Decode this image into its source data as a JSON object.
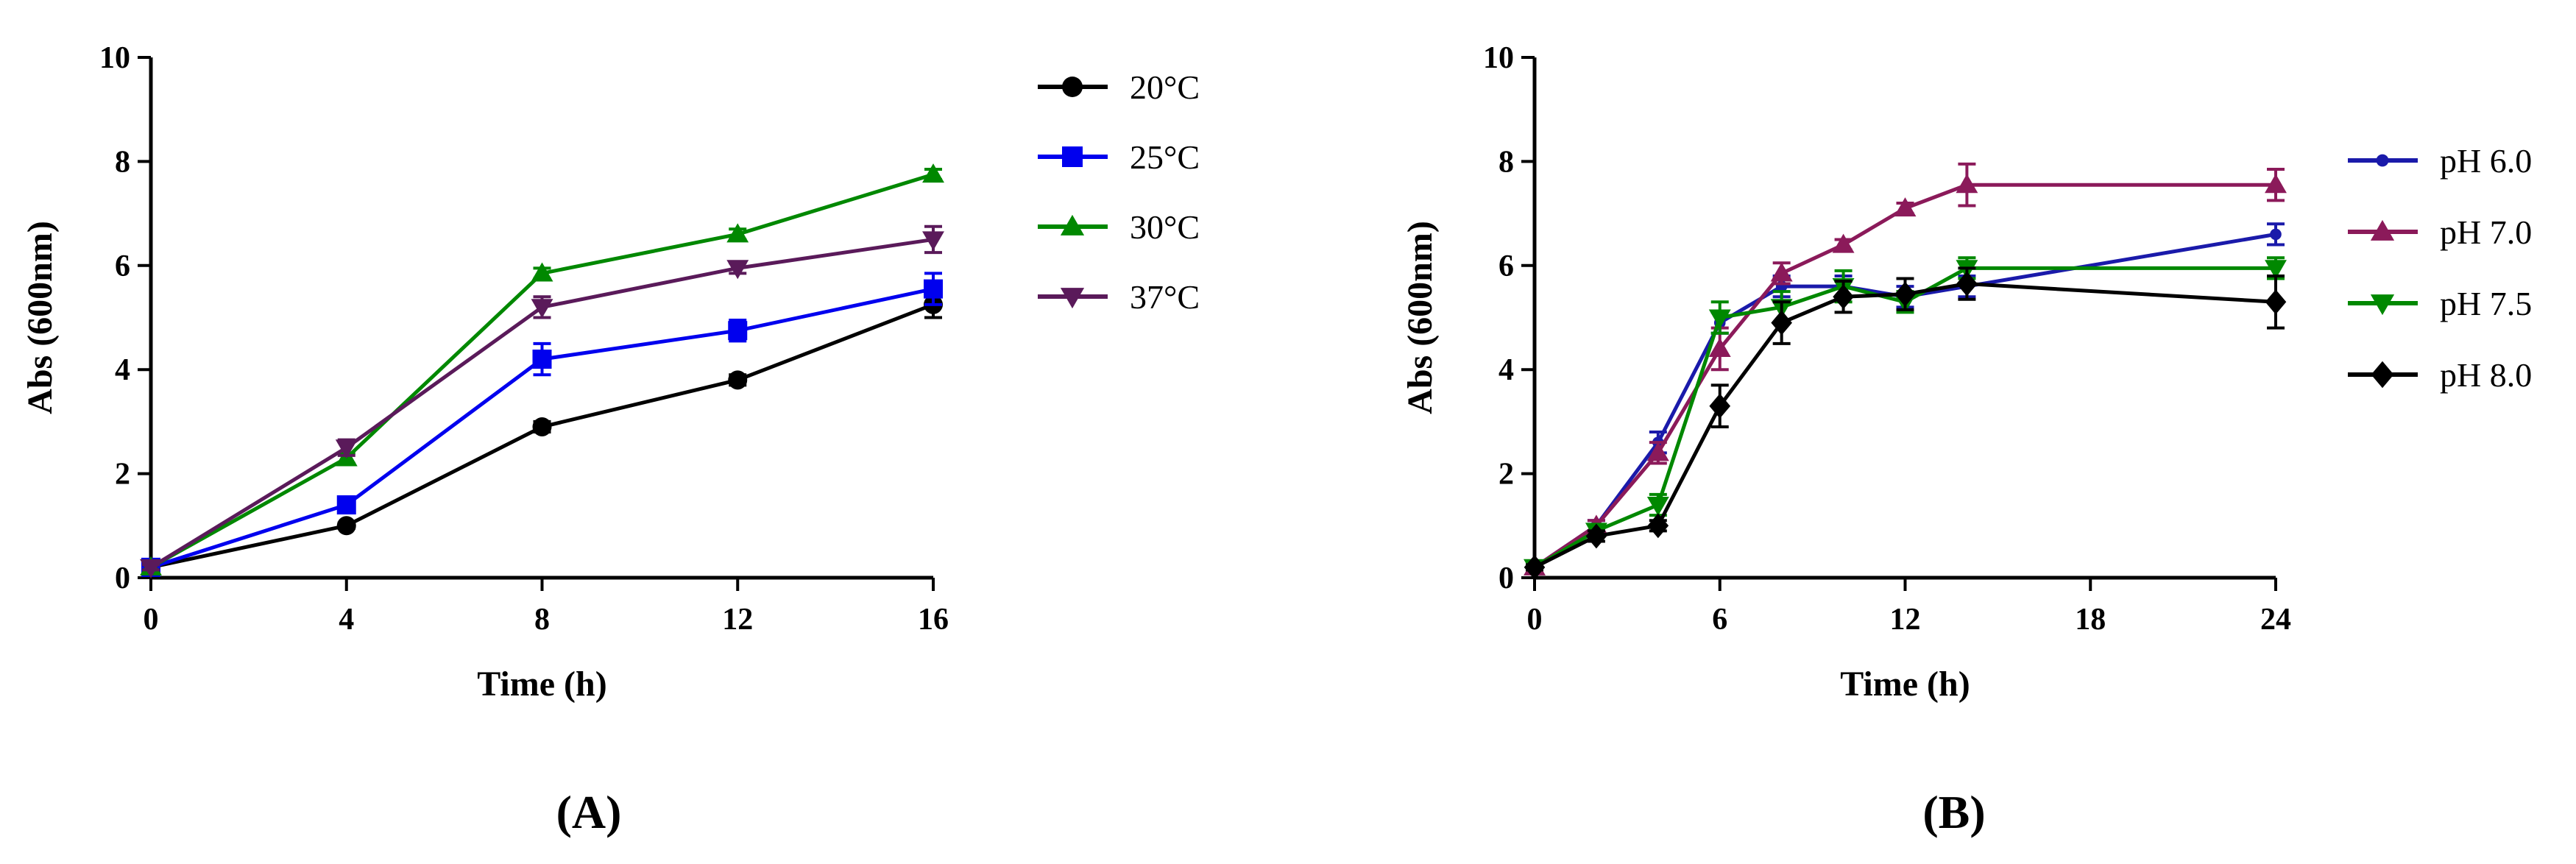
{
  "chart_data": [
    {
      "type": "line",
      "panel_label": "(A)",
      "xlabel": "Time (h)",
      "ylabel": "Abs (600nm)",
      "xlim": [
        0,
        16
      ],
      "ylim": [
        0,
        10
      ],
      "xticks": [
        0,
        4,
        8,
        12,
        16
      ],
      "yticks": [
        0,
        2,
        4,
        6,
        8,
        10
      ],
      "grid": false,
      "legend_position": "top-right",
      "x": [
        0,
        4,
        8,
        12,
        16
      ],
      "series": [
        {
          "name": "20°C",
          "color": "#000000",
          "marker": "circle",
          "values": [
            0.2,
            1.0,
            2.9,
            3.8,
            5.25
          ],
          "errors": [
            0.05,
            0.05,
            0.1,
            0.1,
            0.25
          ]
        },
        {
          "name": "25°C",
          "color": "#0000ee",
          "marker": "square",
          "values": [
            0.2,
            1.4,
            4.2,
            4.75,
            5.55
          ],
          "errors": [
            0.05,
            0.1,
            0.3,
            0.2,
            0.3
          ]
        },
        {
          "name": "30°C",
          "color": "#008800",
          "marker": "triangle-up",
          "values": [
            0.2,
            2.3,
            5.85,
            6.6,
            7.75
          ],
          "errors": [
            0.05,
            0.1,
            0.1,
            0.1,
            0.1
          ]
        },
        {
          "name": "37°C",
          "color": "#5a1a5a",
          "marker": "triangle-down",
          "values": [
            0.2,
            2.5,
            5.2,
            5.95,
            6.5
          ],
          "errors": [
            0.05,
            0.15,
            0.2,
            0.1,
            0.25
          ]
        }
      ]
    },
    {
      "type": "line",
      "panel_label": "(B)",
      "xlabel": "Time (h)",
      "ylabel": "Abs (600nm)",
      "xlim": [
        0,
        24
      ],
      "ylim": [
        0,
        10
      ],
      "xticks": [
        0,
        6,
        12,
        18,
        24
      ],
      "yticks": [
        0,
        2,
        4,
        6,
        8,
        10
      ],
      "grid": false,
      "legend_position": "right",
      "x": [
        0,
        2,
        4,
        6,
        8,
        10,
        12,
        14,
        24
      ],
      "series": [
        {
          "name": "pH 6.0",
          "color": "#1a1aaa",
          "marker": "dot",
          "values": [
            0.2,
            1.0,
            2.6,
            4.9,
            5.6,
            5.6,
            5.4,
            5.6,
            6.6
          ],
          "errors": [
            0.05,
            0.1,
            0.2,
            0.2,
            0.2,
            0.2,
            0.2,
            0.2,
            0.2
          ]
        },
        {
          "name": "pH 7.0",
          "color": "#8b1a5a",
          "marker": "triangle-up",
          "values": [
            0.2,
            1.0,
            2.4,
            4.4,
            5.85,
            6.4,
            7.1,
            7.55,
            7.55
          ],
          "errors": [
            0.05,
            0.1,
            0.2,
            0.4,
            0.2,
            0.1,
            0.1,
            0.4,
            0.3
          ]
        },
        {
          "name": "pH 7.5",
          "color": "#008800",
          "marker": "triangle-down",
          "values": [
            0.2,
            0.9,
            1.4,
            5.0,
            5.2,
            5.6,
            5.3,
            5.95,
            5.95
          ],
          "errors": [
            0.05,
            0.1,
            0.2,
            0.3,
            0.3,
            0.3,
            0.2,
            0.2,
            0.2
          ]
        },
        {
          "name": "pH 8.0",
          "color": "#000000",
          "marker": "diamond",
          "values": [
            0.2,
            0.8,
            1.0,
            3.3,
            4.9,
            5.4,
            5.45,
            5.65,
            5.3
          ],
          "errors": [
            0.05,
            0.1,
            0.1,
            0.4,
            0.4,
            0.3,
            0.3,
            0.3,
            0.5
          ]
        }
      ]
    }
  ]
}
